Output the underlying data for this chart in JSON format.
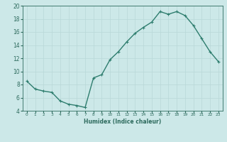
{
  "x": [
    0,
    1,
    2,
    3,
    4,
    5,
    6,
    7,
    8,
    9,
    10,
    11,
    12,
    13,
    14,
    15,
    16,
    17,
    18,
    19,
    20,
    21,
    22,
    23
  ],
  "y": [
    8.5,
    7.3,
    7.0,
    6.8,
    5.5,
    5.0,
    4.8,
    4.5,
    9.0,
    9.5,
    11.8,
    13.0,
    14.5,
    15.8,
    16.7,
    17.5,
    19.1,
    18.7,
    19.1,
    18.5,
    17.0,
    15.0,
    13.0,
    11.5
  ],
  "line_color": "#2e7d6e",
  "marker": "+",
  "marker_size": 3,
  "linewidth": 1.0,
  "xlabel": "Humidex (Indice chaleur)",
  "ylim": [
    4,
    20
  ],
  "xlim": [
    -0.5,
    23.5
  ],
  "yticks": [
    4,
    6,
    8,
    10,
    12,
    14,
    16,
    18,
    20
  ],
  "xtick_labels": [
    "0",
    "1",
    "2",
    "3",
    "4",
    "5",
    "6",
    "7",
    "8",
    "9",
    "10",
    "11",
    "12",
    "13",
    "14",
    "15",
    "16",
    "17",
    "18",
    "19",
    "20",
    "21",
    "22",
    "23"
  ],
  "bg_color": "#cce8e8",
  "grid_color": "#b8d8d8",
  "tick_color": "#2e6b5e",
  "label_color": "#2e6b5e"
}
